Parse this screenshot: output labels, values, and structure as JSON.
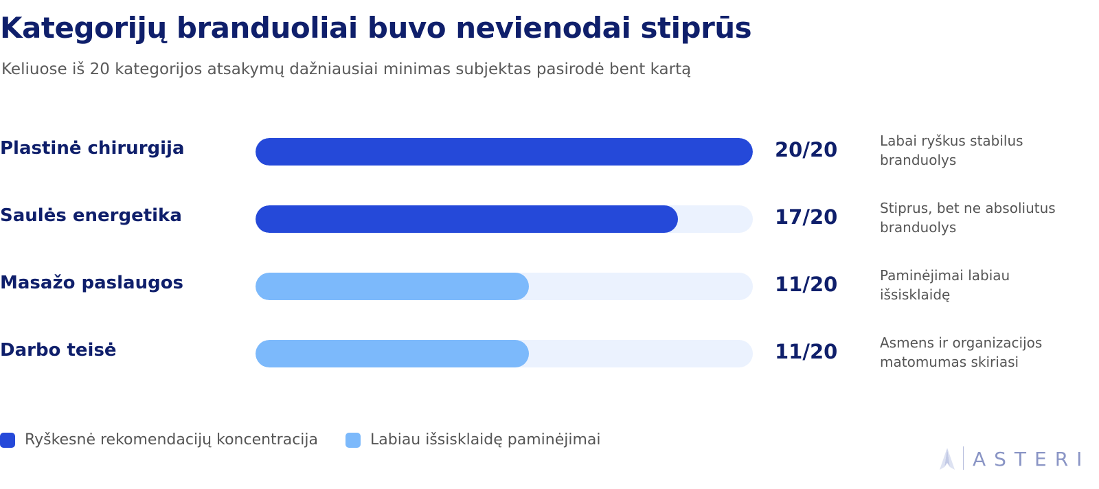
{
  "title": "Kategorijų branduoliai buvo nevienodai stiprūs",
  "subtitle": "Keliuose iš 20 kategorijos atsakymų dažniausiai minimas subjektas pasirodė bent kartą",
  "colors": {
    "strong": "#2549d9",
    "dispersed": "#7cb9fb",
    "track": "#ebf2fe",
    "text_dark": "#0f1f6b"
  },
  "chart_data": {
    "type": "bar",
    "orientation": "horizontal",
    "max": 20,
    "categories": [
      "Plastinė chirurgija",
      "Saulės energetika",
      "Masažo paslaugos",
      "Darbo teisė"
    ],
    "values": [
      20,
      17,
      11,
      11
    ],
    "value_labels": [
      "20/20",
      "17/20",
      "11/20",
      "11/20"
    ],
    "groups": [
      "strong",
      "strong",
      "dispersed",
      "dispersed"
    ],
    "notes": [
      "Labai ryškus stabilus branduolys",
      "Stiprus, bet ne absoliutus branduolys",
      "Paminėjimai labiau išsisklaidę",
      "Asmens ir organizacijos matomumas skiriasi"
    ],
    "legend": [
      {
        "group": "strong",
        "label": "Ryškesnė rekomendacijų koncentracija"
      },
      {
        "group": "dispersed",
        "label": "Labiau išsisklaidę paminėjimai"
      }
    ],
    "legend_position": "bottom-left"
  },
  "brand": {
    "name": "ASTERI",
    "icon": "star-spike-icon"
  }
}
